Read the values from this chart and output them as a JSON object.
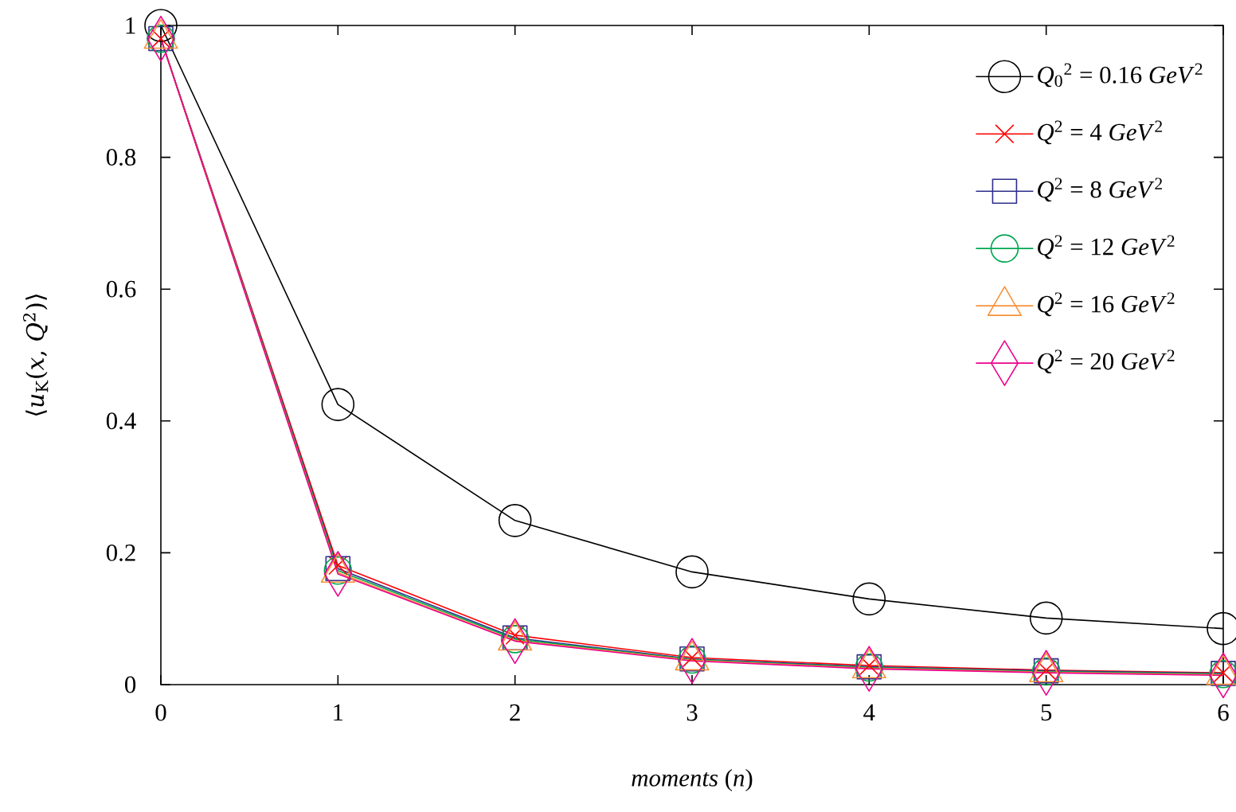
{
  "chart_data": {
    "type": "line",
    "xlabel": "*moments* (*n*)",
    "ylabel": "⟨*u*$_{K}$(*x*, *Q*$^{2}$)⟩",
    "x": [
      0,
      1,
      2,
      3,
      4,
      5,
      6
    ],
    "xlim": [
      0,
      6
    ],
    "xticks": [
      0,
      1,
      2,
      3,
      4,
      5,
      6
    ],
    "ylim": [
      0,
      1
    ],
    "yticks": [
      0,
      0.2,
      0.4,
      0.6,
      0.8,
      1
    ],
    "legend": "top right",
    "line_style": "solid",
    "series": [
      {
        "name": "*Q*$_{0}$$^{2}$ = 0.16 *GeV*$^{2}$",
        "color": "#000000",
        "marker": "circle",
        "values": [
          1.0,
          0.425,
          0.249,
          0.171,
          0.13,
          0.101,
          0.085
        ]
      },
      {
        "name": "*Q*$^{2}$ = 4 *GeV*$^{2}$",
        "color": "#ff0000",
        "marker": "cross",
        "values": [
          0.98,
          0.181,
          0.075,
          0.041,
          0.029,
          0.022,
          0.018
        ]
      },
      {
        "name": "*Q*$^{2}$ = 8 *GeV*$^{2}$",
        "color": "#2e2e8c",
        "marker": "square",
        "values": [
          0.98,
          0.176,
          0.071,
          0.039,
          0.027,
          0.021,
          0.017
        ]
      },
      {
        "name": "*Q*$^{2}$ = 12 *GeV*$^{2}$",
        "color": "#00a651",
        "marker": "circle",
        "values": [
          0.98,
          0.173,
          0.069,
          0.038,
          0.026,
          0.02,
          0.016
        ]
      },
      {
        "name": "*Q*$^{2}$ = 16 *GeV*$^{2}$",
        "color": "#f7923a",
        "marker": "triangle",
        "values": [
          0.98,
          0.17,
          0.067,
          0.037,
          0.025,
          0.019,
          0.015
        ]
      },
      {
        "name": "*Q*$^{2}$ = 20 *GeV*$^{2}$",
        "color": "#ec008c",
        "marker": "diamond",
        "values": [
          0.98,
          0.168,
          0.066,
          0.036,
          0.024,
          0.018,
          0.014
        ]
      }
    ]
  }
}
